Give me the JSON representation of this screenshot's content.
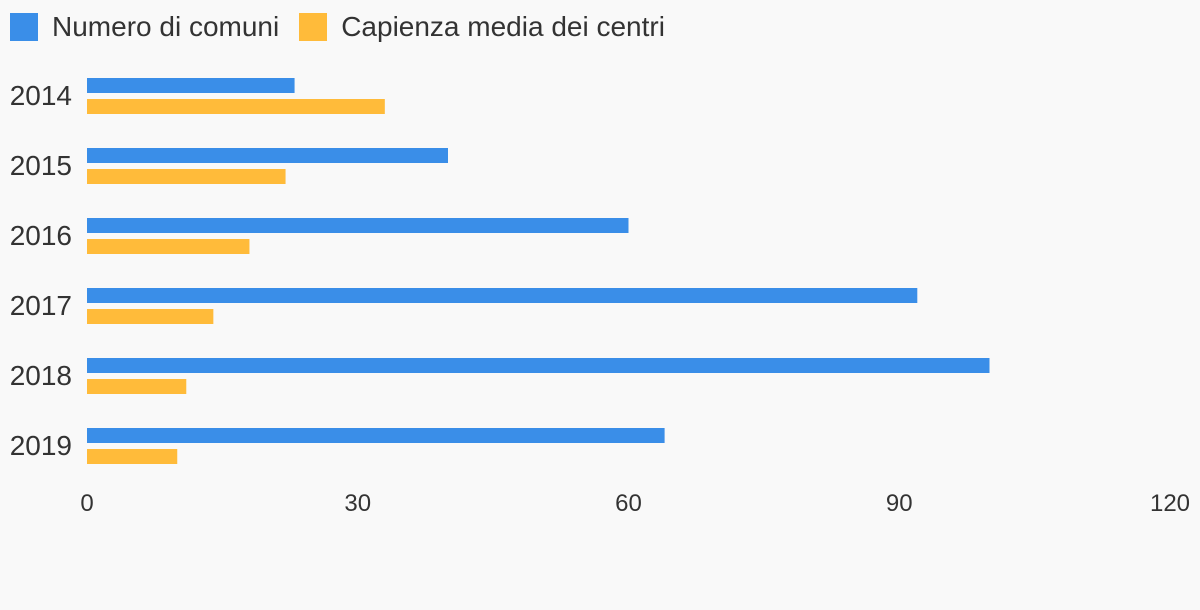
{
  "chart_data": {
    "type": "bar",
    "orientation": "horizontal",
    "categories": [
      "2014",
      "2015",
      "2016",
      "2017",
      "2018",
      "2019"
    ],
    "series": [
      {
        "name": "Numero di comuni",
        "color": "#3a8ee8",
        "values": [
          23,
          40,
          60,
          92,
          100,
          64
        ]
      },
      {
        "name": "Capienza media dei centri",
        "color": "#ffbb3a",
        "values": [
          33,
          22,
          18,
          14,
          11,
          10
        ]
      }
    ],
    "xlim": [
      0,
      120
    ],
    "xticks": [
      "0",
      "30",
      "60",
      "90",
      "120"
    ],
    "grid": false,
    "legend": "top-left"
  }
}
